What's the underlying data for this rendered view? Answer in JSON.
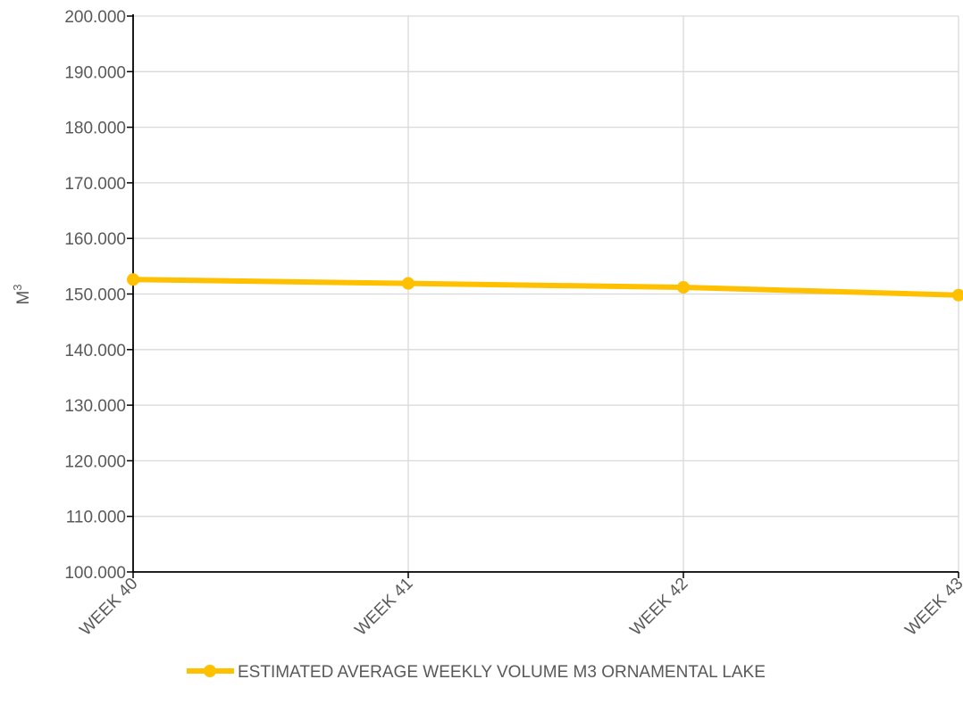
{
  "chart_data": {
    "type": "line",
    "title": "",
    "xlabel": "",
    "ylabel": "M",
    "ylabel_superscript": "3",
    "categories": [
      "WEEK 40",
      "WEEK 41",
      "WEEK 42",
      "WEEK 43"
    ],
    "series": [
      {
        "name": "ESTIMATED AVERAGE WEEKLY VOLUME M3 ORNAMENTAL LAKE",
        "values": [
          152.6,
          151.9,
          151.2,
          149.8
        ],
        "color": "#FFC000"
      }
    ],
    "ylim": [
      100,
      200
    ],
    "yticks": [
      100,
      110,
      120,
      130,
      140,
      150,
      160,
      170,
      180,
      190,
      200
    ],
    "ytick_labels": [
      "100.000",
      "110.000",
      "120.000",
      "130.000",
      "140.000",
      "150.000",
      "160.000",
      "170.000",
      "180.000",
      "190.000",
      "200.000"
    ],
    "grid": true,
    "legend_position": "bottom",
    "colors": {
      "grid": "#D9D9D9",
      "axis": "#000000",
      "text": "#595959"
    }
  }
}
